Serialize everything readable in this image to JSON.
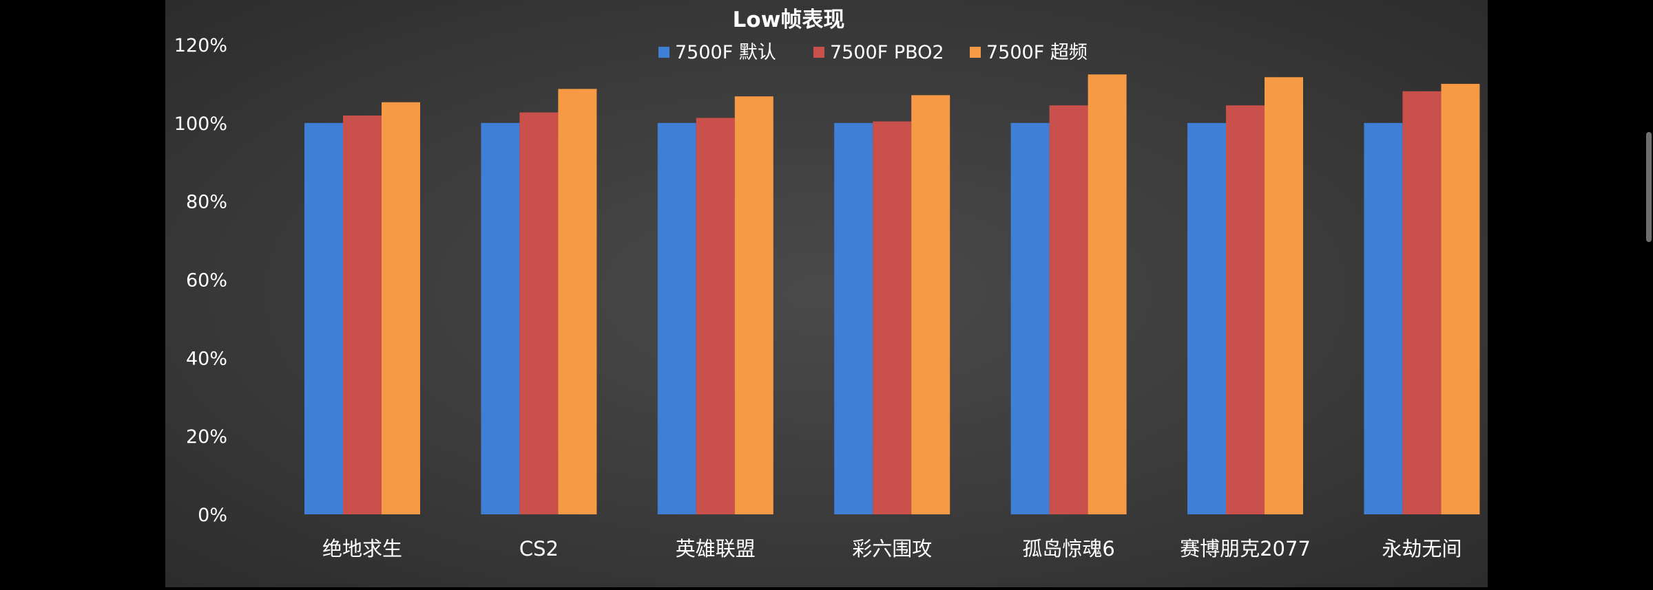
{
  "chart_data": {
    "type": "bar",
    "title": "Low帧表现",
    "categories": [
      "绝地求生",
      "CS2",
      "英雄联盟",
      "彩六围攻",
      "孤岛惊魂6",
      "赛博朋克2077",
      "永劫无间"
    ],
    "series": [
      {
        "name": "7500F 默认",
        "color": "#3f7fd6",
        "values": [
          100,
          100,
          100,
          100,
          100,
          100,
          100
        ]
      },
      {
        "name": "7500F PBO2",
        "color": "#c9504b",
        "values": [
          101.9,
          102.7,
          101.3,
          100.4,
          104.5,
          104.5,
          108.1
        ]
      },
      {
        "name": "7500F 超频",
        "color": "#f79a45",
        "values": [
          105.3,
          108.7,
          106.8,
          107.1,
          112.4,
          111.7,
          110.0
        ]
      }
    ],
    "ylim": [
      0,
      120
    ],
    "ytick_labels": [
      "0%",
      "20%",
      "40%",
      "60%",
      "80%",
      "100%",
      "120%"
    ],
    "grid": false,
    "legend_position": "top-center"
  }
}
